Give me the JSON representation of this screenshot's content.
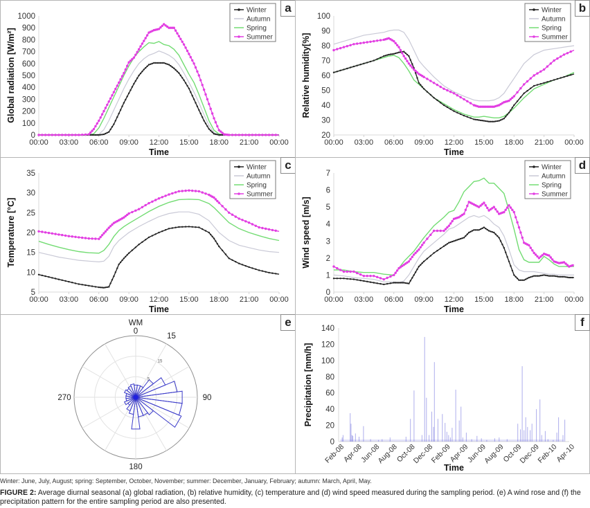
{
  "seasons_colors": {
    "Winter": "#222222",
    "Autumn": "#c9c9d6",
    "Spring": "#72dc72",
    "Summer": "#e23ee2"
  },
  "legend_labels": [
    "Winter",
    "Autumn",
    "Spring",
    "Summer"
  ],
  "chart_data": [
    {
      "id": "a",
      "panel_label": "a",
      "type": "line",
      "title": "",
      "xlabel": "Time",
      "ylabel": "Global radiation [W/m²]",
      "x_ticks": [
        "00:00",
        "03:00",
        "06:00",
        "09:00",
        "12:00",
        "15:00",
        "18:00",
        "21:00",
        "00:00"
      ],
      "xlim": [
        0,
        24
      ],
      "ylim": [
        0,
        1000
      ],
      "y_ticks": [
        0,
        100,
        200,
        300,
        400,
        500,
        600,
        700,
        800,
        900,
        1000
      ],
      "legend_position": "top-right",
      "grid": false,
      "x": [
        0,
        1,
        2,
        3,
        4,
        5,
        5.5,
        6,
        6.5,
        7,
        7.5,
        8,
        8.5,
        9,
        9.5,
        10,
        10.5,
        11,
        11.5,
        12,
        12.5,
        13,
        13.5,
        14,
        14.5,
        15,
        15.5,
        16,
        16.5,
        17,
        17.5,
        18,
        18.5,
        19,
        20,
        21,
        22,
        23,
        24
      ],
      "series": [
        {
          "name": "Winter",
          "markers": true,
          "values": [
            0,
            0,
            0,
            0,
            0,
            0,
            0,
            0,
            5,
            25,
            90,
            180,
            270,
            350,
            430,
            500,
            550,
            590,
            605,
            605,
            605,
            590,
            560,
            520,
            460,
            390,
            300,
            210,
            120,
            50,
            10,
            0,
            0,
            0,
            0,
            0,
            0,
            0,
            0
          ]
        },
        {
          "name": "Autumn",
          "markers": false,
          "values": [
            0,
            0,
            0,
            0,
            0,
            0,
            0,
            5,
            45,
            120,
            210,
            300,
            390,
            470,
            540,
            600,
            640,
            670,
            685,
            705,
            690,
            670,
            640,
            590,
            520,
            440,
            360,
            270,
            170,
            80,
            20,
            2,
            0,
            0,
            0,
            0,
            0,
            0,
            0
          ]
        },
        {
          "name": "Spring",
          "markers": false,
          "values": [
            0,
            0,
            0,
            0,
            0,
            0,
            10,
            60,
            140,
            230,
            320,
            410,
            500,
            580,
            650,
            700,
            740,
            775,
            770,
            785,
            760,
            750,
            720,
            670,
            590,
            510,
            440,
            340,
            230,
            120,
            40,
            8,
            0,
            0,
            0,
            0,
            0,
            0,
            0
          ]
        },
        {
          "name": "Summer",
          "markers": true,
          "values": [
            0,
            0,
            0,
            0,
            0,
            5,
            50,
            120,
            200,
            280,
            360,
            440,
            520,
            610,
            650,
            720,
            790,
            860,
            880,
            890,
            930,
            900,
            900,
            830,
            760,
            680,
            600,
            500,
            380,
            260,
            140,
            40,
            5,
            0,
            0,
            0,
            0,
            0,
            0
          ]
        }
      ]
    },
    {
      "id": "b",
      "panel_label": "b",
      "type": "line",
      "title": "",
      "xlabel": "Time",
      "ylabel": "Relative humidity[%]",
      "x_ticks": [
        "00:00",
        "03:00",
        "06:00",
        "09:00",
        "12:00",
        "15:00",
        "18:00",
        "21:00",
        "00:00"
      ],
      "xlim": [
        0,
        24
      ],
      "ylim": [
        20,
        100
      ],
      "y_ticks": [
        20,
        30,
        40,
        50,
        60,
        70,
        80,
        90,
        100
      ],
      "legend_position": "top-right",
      "grid": false,
      "x": [
        0,
        1,
        2,
        3,
        4,
        5,
        5.5,
        6,
        6.5,
        7,
        7.5,
        8,
        8.5,
        9,
        10,
        11,
        12,
        13,
        14,
        14.5,
        15,
        15.5,
        16,
        16.5,
        17,
        17.5,
        18,
        19,
        20,
        21,
        22,
        23,
        24
      ],
      "series": [
        {
          "name": "Winter",
          "markers": true,
          "values": [
            62,
            64,
            66,
            68,
            70,
            73,
            74,
            74.5,
            75.5,
            76,
            73,
            65,
            55,
            51,
            45,
            40,
            36,
            33,
            30.5,
            30,
            29.5,
            29,
            29,
            29.5,
            31,
            35,
            40,
            48,
            53,
            55,
            57,
            59,
            61
          ]
        },
        {
          "name": "Autumn",
          "markers": false,
          "values": [
            81,
            83,
            85,
            87,
            88,
            89,
            90,
            90.5,
            90.5,
            89,
            84,
            77,
            70,
            66,
            59,
            53,
            49,
            46,
            43.5,
            43,
            43,
            43,
            43.5,
            45,
            48,
            53,
            58,
            68,
            74,
            77,
            78,
            79,
            80
          ]
        },
        {
          "name": "Spring",
          "markers": false,
          "values": [
            62,
            64,
            66,
            68,
            70,
            72,
            73,
            73.5,
            72,
            68,
            63,
            57,
            54,
            51,
            45,
            41,
            37,
            34,
            32,
            32,
            32.5,
            32,
            31.5,
            31.5,
            32.5,
            35,
            38,
            45,
            51,
            54,
            57,
            59,
            62
          ]
        },
        {
          "name": "Summer",
          "markers": true,
          "values": [
            77,
            79,
            81,
            82,
            83,
            84,
            85,
            83,
            79,
            73,
            68,
            64,
            61,
            59,
            55,
            51,
            48,
            44,
            40,
            39,
            39,
            39,
            39,
            40,
            42,
            43,
            46,
            54,
            60,
            64,
            70,
            74,
            77
          ]
        }
      ]
    },
    {
      "id": "c",
      "panel_label": "c",
      "type": "line",
      "title": "",
      "xlabel": "Time",
      "ylabel": "Temperature [°C]",
      "x_ticks": [
        "00:00",
        "03:00",
        "06:00",
        "09:00",
        "12:00",
        "15:00",
        "18:00",
        "21:00",
        "00:00"
      ],
      "xlim": [
        0,
        24
      ],
      "ylim": [
        5,
        35
      ],
      "y_ticks": [
        5,
        10,
        15,
        20,
        25,
        30,
        35
      ],
      "legend_position": "top-right",
      "grid": false,
      "x": [
        0,
        1,
        2,
        3,
        4,
        5,
        6,
        6.5,
        7,
        7.5,
        8,
        8.5,
        9,
        10,
        11,
        12,
        13,
        14,
        15,
        16,
        17,
        17.5,
        18,
        19,
        20,
        21,
        22,
        23,
        24
      ],
      "series": [
        {
          "name": "Winter",
          "markers": true,
          "values": [
            9.4,
            8.8,
            8.2,
            7.6,
            7.0,
            6.6,
            6.2,
            6.1,
            6.3,
            9,
            12,
            13.5,
            14.8,
            17,
            18.8,
            20,
            21,
            21.4,
            21.5,
            21.3,
            20,
            18.5,
            16.5,
            13.5,
            12.2,
            11.3,
            10.5,
            9.9,
            9.5
          ]
        },
        {
          "name": "Autumn",
          "markers": false,
          "values": [
            15,
            14.4,
            13.8,
            13.4,
            13.0,
            12.8,
            12.6,
            12.8,
            14,
            16.5,
            18,
            19,
            20,
            21.5,
            22.8,
            24,
            24.8,
            25.2,
            25.2,
            24.6,
            23,
            21.5,
            20,
            18,
            16.8,
            16.2,
            15.6,
            15.2,
            15
          ]
        },
        {
          "name": "Spring",
          "markers": false,
          "values": [
            17.8,
            17,
            16.3,
            15.7,
            15.2,
            14.9,
            14.8,
            15.5,
            17,
            19,
            20.5,
            21.5,
            22.3,
            23.8,
            25.3,
            26.6,
            27.6,
            28.3,
            28.4,
            28.3,
            27.3,
            26.3,
            25,
            22.5,
            21,
            20,
            19.2,
            18.5,
            18
          ]
        },
        {
          "name": "Summer",
          "markers": true,
          "values": [
            20.3,
            19.9,
            19.5,
            19.1,
            18.8,
            18.5,
            18.4,
            19.8,
            21.2,
            22.4,
            23.1,
            23.8,
            24.8,
            25.9,
            27.4,
            28.6,
            29.6,
            30.4,
            30.6,
            30.4,
            29.5,
            28.8,
            27.5,
            25,
            23.5,
            22.5,
            21.3,
            20.8,
            20.3
          ]
        }
      ]
    },
    {
      "id": "d",
      "panel_label": "d",
      "type": "line",
      "title": "",
      "xlabel": "Time",
      "ylabel": "Wind speed [m/s]",
      "x_ticks": [
        "00:00",
        "03:00",
        "06:00",
        "09:00",
        "12:00",
        "15:00",
        "18:00",
        "21:00",
        "00:00"
      ],
      "xlim": [
        0,
        24
      ],
      "ylim": [
        0,
        7
      ],
      "y_ticks": [
        0,
        1,
        2,
        3,
        4,
        5,
        6,
        7
      ],
      "legend_position": "top-right",
      "grid": false,
      "x": [
        0,
        1,
        2,
        3,
        4,
        5,
        6,
        6.5,
        7,
        7.5,
        8,
        8.5,
        9,
        10,
        11,
        11.5,
        12,
        12.5,
        13,
        13.5,
        14,
        14.5,
        15,
        15.5,
        16,
        16.5,
        17,
        17.5,
        18,
        18.5,
        19,
        19.5,
        20,
        20.5,
        21,
        21.5,
        22,
        22.5,
        23,
        23.5,
        24
      ],
      "series": [
        {
          "name": "Winter",
          "markers": true,
          "values": [
            0.8,
            0.8,
            0.75,
            0.65,
            0.55,
            0.45,
            0.55,
            0.55,
            0.55,
            0.5,
            1.0,
            1.5,
            1.8,
            2.3,
            2.7,
            2.9,
            3.0,
            3.1,
            3.2,
            3.5,
            3.65,
            3.65,
            3.8,
            3.6,
            3.5,
            3.2,
            2.6,
            1.8,
            1.0,
            0.7,
            0.7,
            0.85,
            0.95,
            0.95,
            1.0,
            0.95,
            0.95,
            0.9,
            0.9,
            0.85,
            0.85
          ]
        },
        {
          "name": "Autumn",
          "markers": false,
          "values": [
            1.0,
            0.95,
            0.85,
            0.8,
            0.75,
            0.6,
            0.6,
            0.55,
            0.65,
            1.0,
            1.5,
            2.0,
            2.4,
            2.9,
            3.4,
            3.7,
            3.8,
            4.0,
            4.2,
            4.4,
            4.5,
            4.4,
            4.5,
            4.3,
            4.0,
            3.8,
            3.3,
            2.5,
            1.6,
            1.3,
            1.2,
            1.2,
            1.2,
            1.15,
            1.1,
            1.05,
            1.05,
            1.0,
            1.0,
            1.0,
            1.0
          ]
        },
        {
          "name": "Spring",
          "markers": false,
          "values": [
            1.3,
            1.3,
            1.2,
            1.15,
            1.15,
            1.05,
            1.0,
            1.4,
            1.8,
            2.1,
            2.4,
            2.8,
            3.2,
            3.9,
            4.4,
            4.7,
            4.8,
            5.3,
            5.9,
            6.2,
            6.5,
            6.55,
            6.7,
            6.4,
            6.4,
            6.1,
            5.8,
            4.8,
            3.7,
            2.5,
            1.9,
            1.75,
            1.75,
            1.75,
            2.1,
            1.9,
            1.65,
            1.5,
            1.5,
            1.5,
            1.5
          ]
        },
        {
          "name": "Summer",
          "markers": true,
          "values": [
            1.5,
            1.2,
            1.2,
            0.95,
            0.95,
            0.75,
            1.0,
            1.4,
            1.6,
            1.8,
            2.2,
            2.5,
            2.9,
            3.6,
            3.6,
            3.9,
            4.3,
            4.4,
            4.6,
            5.3,
            5.15,
            5.0,
            5.25,
            4.8,
            5.0,
            4.6,
            4.7,
            5.1,
            4.7,
            3.8,
            2.9,
            2.75,
            2.3,
            2.0,
            2.25,
            2.15,
            1.8,
            1.7,
            1.75,
            1.5,
            1.6
          ]
        }
      ]
    },
    {
      "id": "e",
      "panel_label": "e",
      "type": "wind-rose",
      "title": "WM",
      "angle_labels": [
        {
          "deg": 0,
          "text": "0"
        },
        {
          "deg": 30,
          "text": "15"
        },
        {
          "deg": 90,
          "text": "90"
        },
        {
          "deg": 180,
          "text": "180"
        },
        {
          "deg": 270,
          "text": "270"
        }
      ],
      "radial_ticks": [
        5,
        15
      ],
      "rmax": 25,
      "sector_width_deg": 15,
      "directions_deg": [
        0,
        15,
        30,
        45,
        60,
        75,
        90,
        105,
        120,
        135,
        150,
        165,
        180,
        195,
        210,
        225,
        240,
        255,
        270,
        285,
        300,
        315,
        330,
        345
      ],
      "values": [
        5,
        5,
        5,
        9,
        13,
        17,
        19,
        19,
        20,
        9,
        8,
        8,
        13,
        7,
        6,
        4,
        5,
        4,
        4,
        4,
        5,
        4.5,
        5,
        5.5
      ],
      "bar_color": "#3b3bc9"
    },
    {
      "id": "f",
      "panel_label": "f",
      "type": "bar",
      "title": "",
      "xlabel": "Time",
      "ylabel": "Precipitation [mm/h]",
      "x_ticks": [
        "Feb-08",
        "Apr-08",
        "Jun-08",
        "Aug-08",
        "Oct-08",
        "Dec-08",
        "Feb-09",
        "Apr-09",
        "Jun-09",
        "Aug-09",
        "Oct-09",
        "Dec-09",
        "Feb-10",
        "Apr-10"
      ],
      "xlim_months": [
        0,
        26
      ],
      "ylim": [
        0,
        140
      ],
      "y_ticks": [
        0,
        20,
        40,
        60,
        80,
        100,
        120,
        140
      ],
      "bar_color": "#6b6bdc",
      "months_since_feb08": [
        0.4,
        0.5,
        1.3,
        1.4,
        1.5,
        1.6,
        1.9,
        2.3,
        2.8,
        3.6,
        4.5,
        4.9,
        5.8,
        7.6,
        8.1,
        8.5,
        9.4,
        9.7,
        9.9,
        10.2,
        10.5,
        10.7,
        10.8,
        11.2,
        11.7,
        12.0,
        12.2,
        12.4,
        12.6,
        12.8,
        13.2,
        13.6,
        13.8,
        14.0,
        14.4,
        15.0,
        15.6,
        16.1,
        16.7,
        17.6,
        18.1,
        19.0,
        20.2,
        20.5,
        20.7,
        20.9,
        21.1,
        21.3,
        21.6,
        21.8,
        22.3,
        22.7,
        22.9,
        23.3,
        23.6,
        24.2,
        24.6,
        24.8,
        25.3,
        25.5
      ],
      "values": [
        5,
        8,
        35,
        22,
        8,
        7,
        10,
        6,
        19,
        3,
        2,
        3,
        5,
        6,
        28,
        63,
        8,
        129,
        54,
        8,
        37,
        18,
        98,
        28,
        34,
        23,
        12,
        8,
        5,
        17,
        64,
        26,
        43,
        5,
        11,
        3,
        7,
        4,
        2,
        4,
        5,
        3,
        22,
        15,
        93,
        14,
        30,
        18,
        14,
        22,
        40,
        52,
        8,
        13,
        3,
        2,
        11,
        30,
        8,
        27
      ]
    }
  ],
  "footnote": "Winter: June, July, August; spring: September, October, November; summer: December, January, February; autumn: March, April, May.",
  "caption": {
    "label": "FIGURE 2:",
    "text": " Average diurnal seasonal (a) global radiation, (b) relative humidity, (c) temperature and (d) wind speed measured during the sampling period. (e) A wind rose and (f) the precipitation pattern for the entire sampling period are also presented."
  }
}
